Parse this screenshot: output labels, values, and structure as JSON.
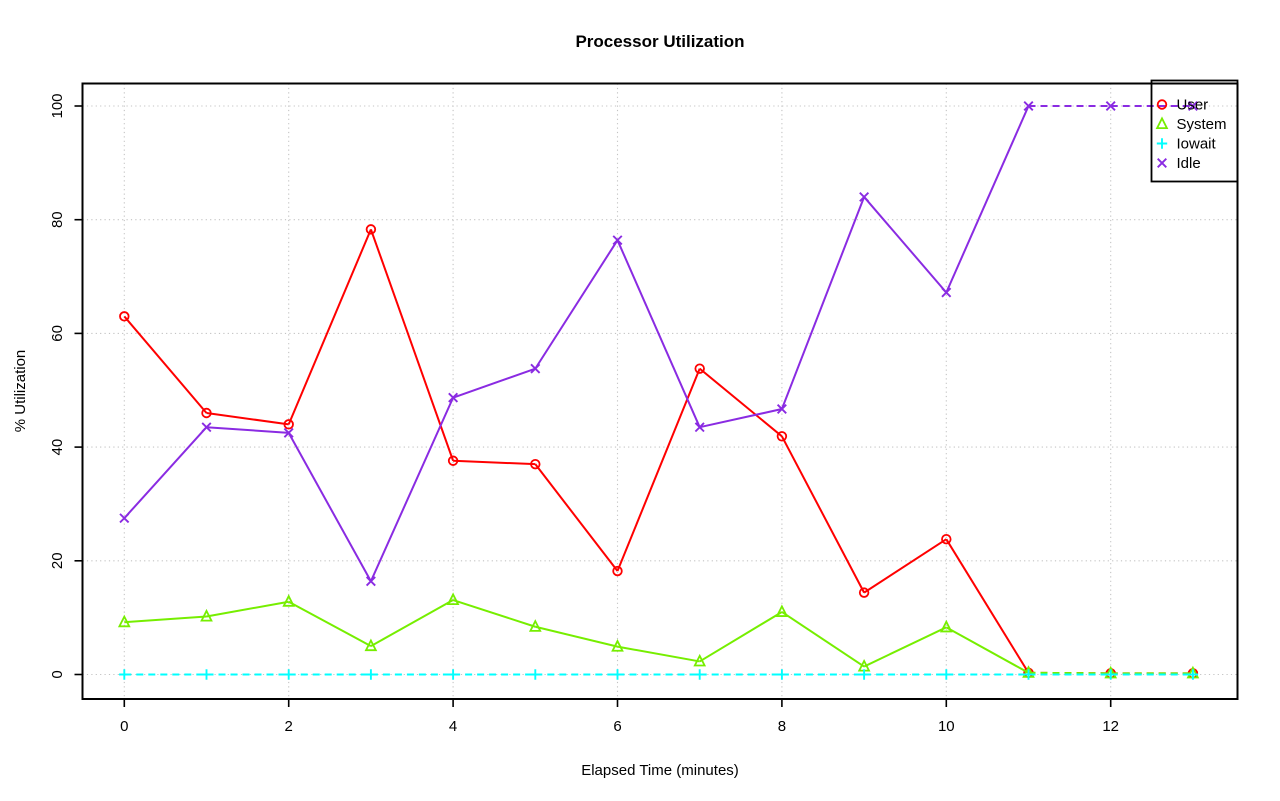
{
  "title": "Processor Utilization",
  "x_axis": {
    "label": "Elapsed Time (minutes)",
    "tick_labels": [
      0,
      2,
      4,
      6,
      8,
      10,
      12
    ]
  },
  "y_axis": {
    "label": "% Utilization",
    "tick_labels": [
      0,
      20,
      40,
      60,
      80,
      100
    ]
  },
  "colors": {
    "user": "#FF0000",
    "system": "#76EE00",
    "iowait": "#00FFFF",
    "idle": "#8A2BE2",
    "grid": "#C3C3C3",
    "frame": "#000000"
  },
  "chart_data": {
    "type": "line",
    "title": "Processor Utilization",
    "xlabel": "Elapsed Time (minutes)",
    "ylabel": "% Utilization",
    "xlim": [
      0,
      13
    ],
    "ylim": [
      0,
      100
    ],
    "grid": true,
    "legend_position": "topright",
    "x": [
      0,
      1,
      2,
      3,
      4,
      5,
      6,
      7,
      8,
      9,
      10,
      11,
      12,
      13
    ],
    "x_ticks": [
      0,
      2,
      4,
      6,
      8,
      10,
      12
    ],
    "y_ticks": [
      0,
      20,
      40,
      60,
      80,
      100
    ],
    "series": [
      {
        "name": "User",
        "marker": "circle",
        "color": "#FF0000",
        "values": [
          63.0,
          46.0,
          44.0,
          78.3,
          37.6,
          37.0,
          18.2,
          53.8,
          41.9,
          14.4,
          23.8,
          0.3,
          0.2,
          0.2
        ]
      },
      {
        "name": "System",
        "marker": "triangle",
        "color": "#76EE00",
        "values": [
          9.2,
          10.2,
          12.8,
          5.0,
          13.1,
          8.4,
          4.9,
          2.3,
          11.0,
          1.4,
          8.3,
          0.3,
          0.2,
          0.2
        ]
      },
      {
        "name": "Iowait",
        "marker": "plus",
        "color": "#00FFFF",
        "values": [
          0,
          0,
          0,
          0,
          0,
          0,
          0,
          0,
          0,
          0,
          0,
          0,
          0,
          0
        ]
      },
      {
        "name": "Idle",
        "marker": "x",
        "color": "#8A2BE2",
        "values": [
          27.5,
          43.5,
          42.5,
          16.4,
          48.7,
          53.8,
          76.4,
          43.5,
          46.7,
          84.0,
          67.2,
          100.0,
          100.0,
          100.0
        ]
      }
    ]
  }
}
